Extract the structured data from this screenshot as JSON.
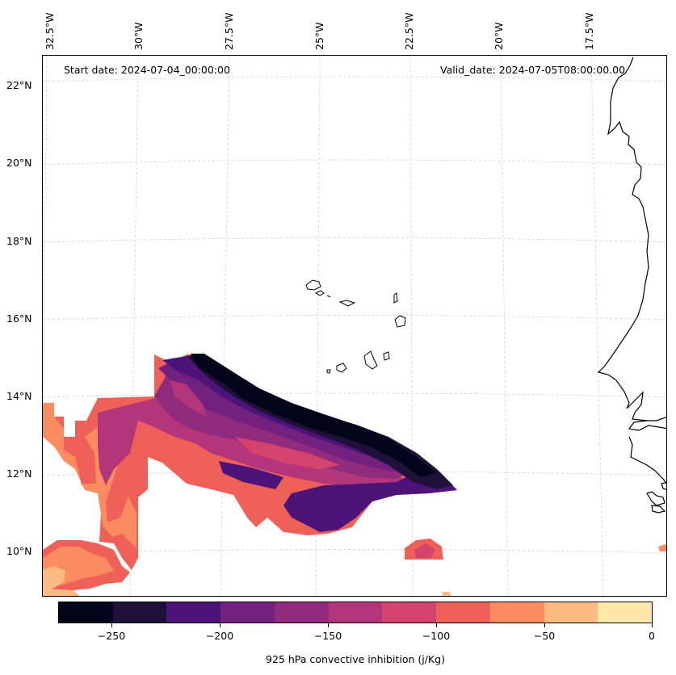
{
  "map": {
    "lon_labels": [
      "32.5°W",
      "30°W",
      "27.5°W",
      "25°W",
      "22.5°W",
      "20°W",
      "17.5°W"
    ],
    "lat_labels": [
      "22°N",
      "20°N",
      "18°N",
      "16°N",
      "14°N",
      "12°N",
      "10°N"
    ],
    "start_date": "Start date: 2024-07-04_00:00:00",
    "valid_date": "Valid_date: 2024-07-05T08:00:00.00"
  },
  "colorbar": {
    "title": "925 hPa convective inhibition (j/Kg)",
    "tick_labels": [
      "−250",
      "−200",
      "−150",
      "−100",
      "−50",
      "0"
    ],
    "colors": [
      "#03051a",
      "#20113b",
      "#4c1379",
      "#72217f",
      "#902b7d",
      "#b3357a",
      "#d4436e",
      "#ef6158",
      "#fb8c5f",
      "#fdbb84",
      "#fde7a9"
    ]
  },
  "colors": {
    "coastline": "#000000",
    "gridline": "#c8c8c8"
  }
}
